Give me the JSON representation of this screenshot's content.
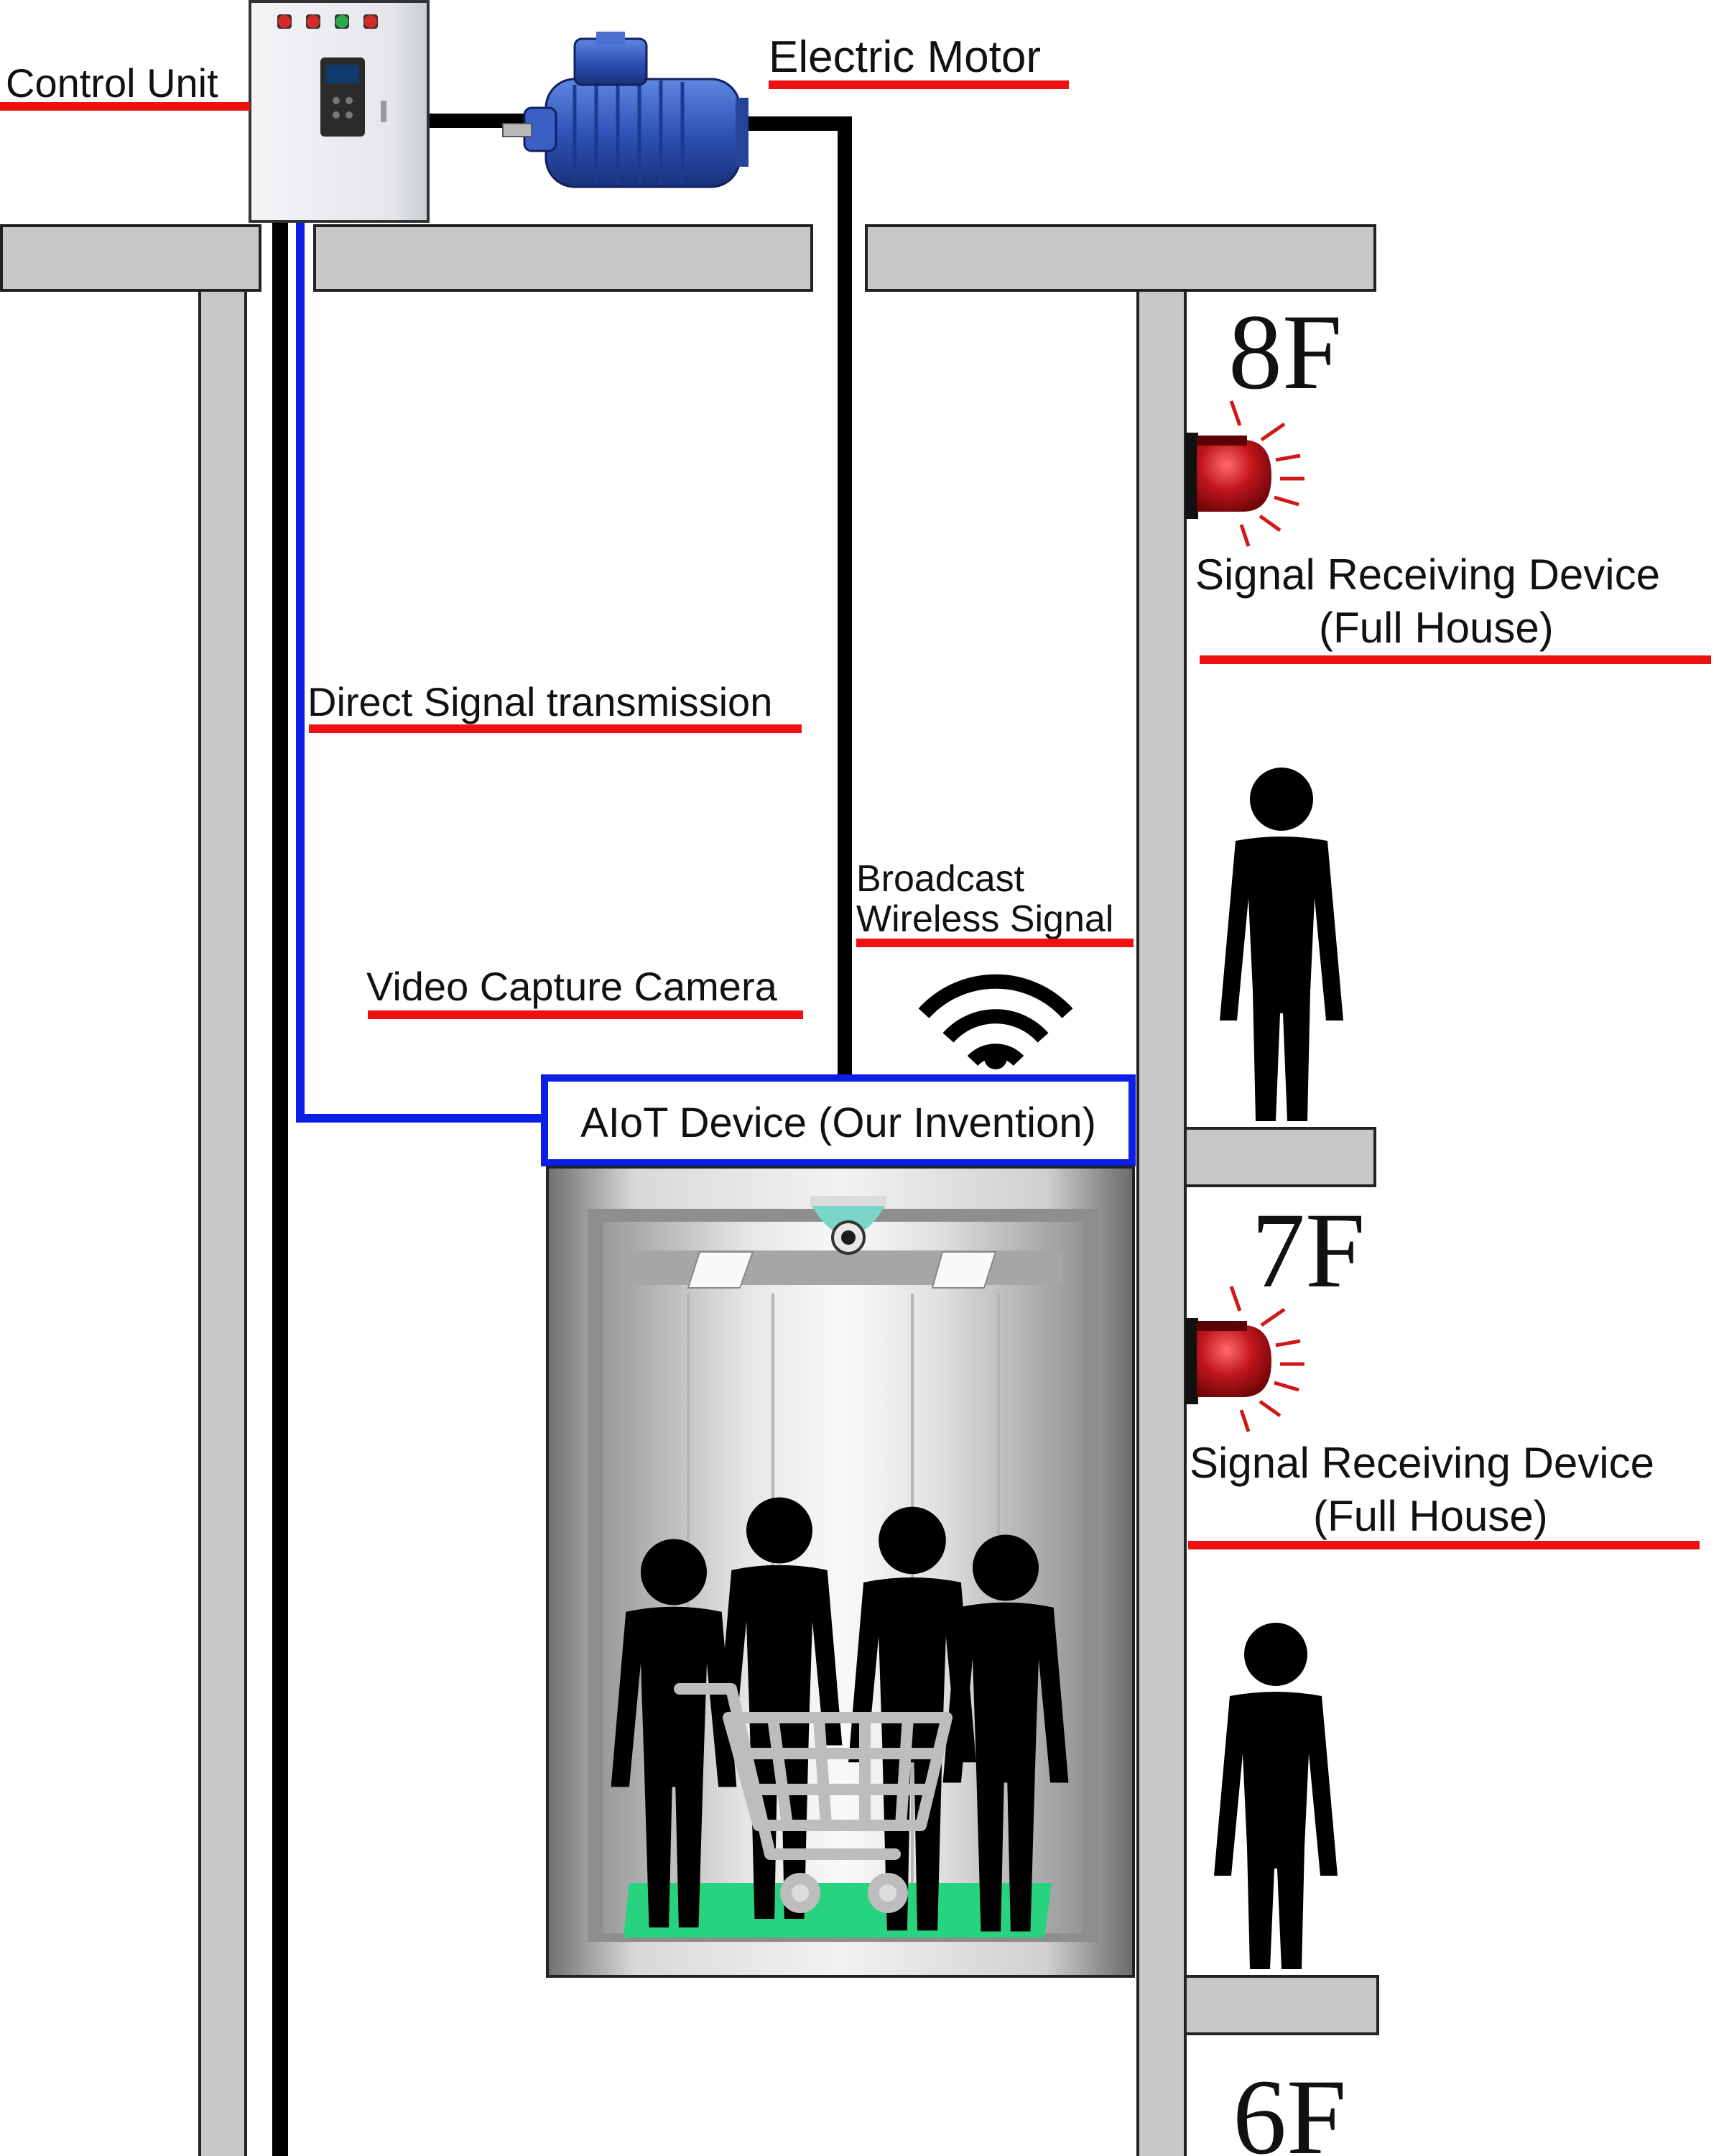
{
  "labels": {
    "control_unit": "Control Unit",
    "electric_motor": "Electric Motor",
    "direct_signal": "Direct Signal transmission",
    "broadcast_line1": "Broadcast",
    "broadcast_line2": "Wireless Signal",
    "video_camera": "Video  Capture Camera",
    "aiot_device": "AIoT Device (Our Invention)",
    "receiver_8f_line1": "Signal Receiving Device",
    "receiver_8f_line2": "(Full House)",
    "receiver_7f_line1": "Signal Receiving Device",
    "receiver_7f_line2": "(Full House)"
  },
  "floors": {
    "f8": "8F",
    "f7": "7F",
    "f6": "6F"
  },
  "colors": {
    "underline": "#ee1111",
    "direct_line": "#0a1ee6",
    "aiot_border": "#0a1ee6",
    "wire": "#000000",
    "structure": "#c8c8c8",
    "beacon": "#c0161c",
    "floor_mat": "#27d37f",
    "person": "#000000",
    "motor": "#2e54b8",
    "camera": "#7ad6c8"
  },
  "icons": [
    "wifi-icon",
    "alarm-beacon-icon",
    "person-icon",
    "shopping-cart-icon",
    "dome-camera-icon",
    "electric-motor-icon",
    "control-cabinet-icon"
  ]
}
